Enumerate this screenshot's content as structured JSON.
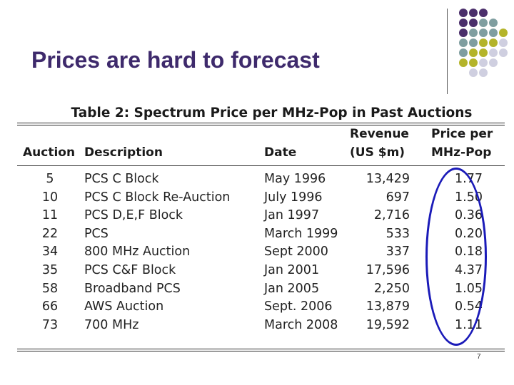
{
  "slide": {
    "title": "Prices are hard to forecast",
    "page_number": "7"
  },
  "table": {
    "caption": "Table 2: Spectrum Price per MHz-Pop in Past Auctions",
    "headers": {
      "auction": "Auction",
      "description": "Description",
      "date": "Date",
      "revenue_line1": "Revenue",
      "revenue_line2": "(US $m)",
      "price_line1": "Price per",
      "price_line2": "MHz-Pop"
    },
    "rows": [
      {
        "auction": "5",
        "description": "PCS C Block",
        "date": "May 1996",
        "revenue": "13,429",
        "price": "1.77"
      },
      {
        "auction": "10",
        "description": "PCS C Block Re-Auction",
        "date": "July 1996",
        "revenue": "697",
        "price": "1.50"
      },
      {
        "auction": "11",
        "description": "PCS D,E,F Block",
        "date": "Jan 1997",
        "revenue": "2,716",
        "price": "0.36"
      },
      {
        "auction": "22",
        "description": "PCS",
        "date": "March 1999",
        "revenue": "533",
        "price": "0.20"
      },
      {
        "auction": "34",
        "description": "800 MHz Auction",
        "date": "Sept 2000",
        "revenue": "337",
        "price": "0.18"
      },
      {
        "auction": "35",
        "description": "PCS C&F Block",
        "date": "Jan 2001",
        "revenue": "17,596",
        "price": "4.37"
      },
      {
        "auction": "58",
        "description": "Broadband PCS",
        "date": "Jan 2005",
        "revenue": "2,250",
        "price": "1.05"
      },
      {
        "auction": "66",
        "description": "AWS Auction",
        "date": "Sept. 2006",
        "revenue": "13,879",
        "price": "0.54"
      },
      {
        "auction": "73",
        "description": "700 MHz",
        "date": "March 2008",
        "revenue": "19,592",
        "price": "1.11"
      }
    ]
  },
  "colors": {
    "title": "#3e2a6c",
    "dot_purple": "#4b2f6b",
    "dot_teal": "#7f9ea0",
    "dot_olive": "#b4b42a",
    "dot_lavender": "#cfcfe0",
    "highlight_oval": "#1a1ab8"
  },
  "decoration": {
    "dot_grid": [
      [
        "dot_purple",
        "dot_purple",
        "dot_purple",
        null,
        null
      ],
      [
        "dot_purple",
        "dot_purple",
        "dot_teal",
        "dot_teal",
        null
      ],
      [
        "dot_purple",
        "dot_teal",
        "dot_teal",
        "dot_teal",
        "dot_olive"
      ],
      [
        "dot_teal",
        "dot_teal",
        "dot_olive",
        "dot_olive",
        "dot_lavender"
      ],
      [
        "dot_teal",
        "dot_olive",
        "dot_olive",
        "dot_lavender",
        "dot_lavender"
      ],
      [
        "dot_olive",
        "dot_olive",
        "dot_lavender",
        "dot_lavender",
        null
      ],
      [
        null,
        "dot_lavender",
        "dot_lavender",
        null,
        null
      ]
    ]
  }
}
